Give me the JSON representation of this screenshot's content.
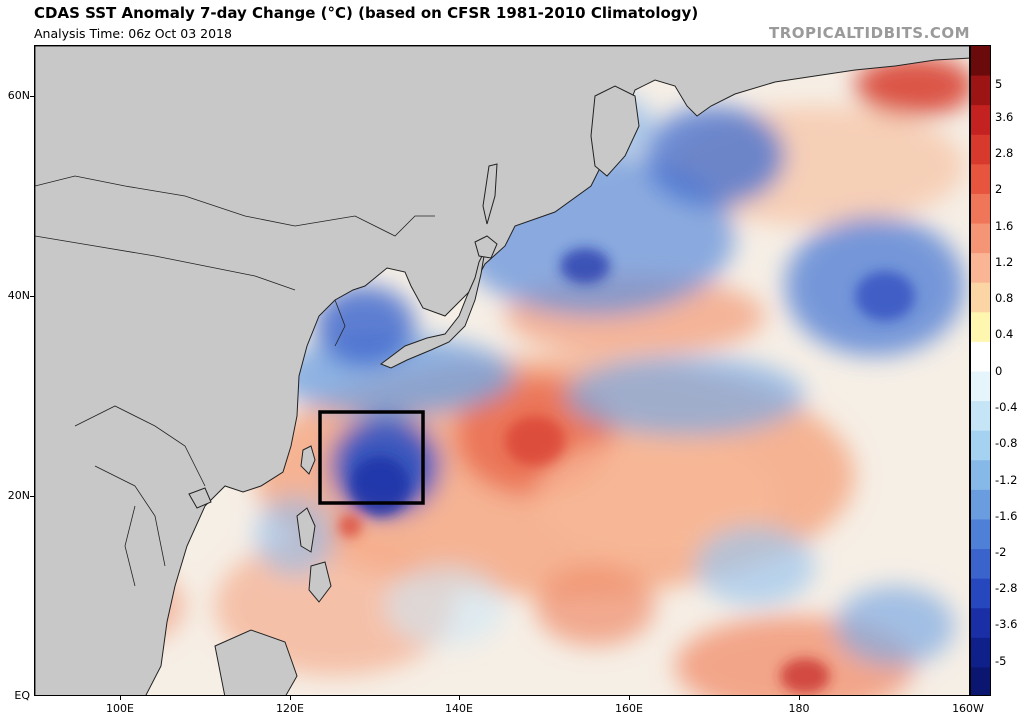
{
  "header": {
    "title": "CDAS SST Anomaly 7-day Change (°C) (based on CFSR 1981-2010 Climatology)",
    "analysis_time": "Analysis Time: 06z Oct 03 2018",
    "brand": "TROPICALTIDBITS.COM"
  },
  "map": {
    "lat_labels": [
      "60N",
      "40N",
      "20N",
      "EQ"
    ],
    "lon_labels": [
      "100E",
      "120E",
      "140E",
      "160E",
      "180",
      "160W"
    ],
    "land_color": "#c8c8c8",
    "box_color": "#000000",
    "highlight_box": {
      "lon_range": [
        "123E",
        "135E"
      ],
      "lat_range": [
        "19N",
        "28N"
      ]
    }
  },
  "colorbar": {
    "labels": [
      "5",
      "3.6",
      "2.8",
      "2",
      "1.6",
      "1.2",
      "0.8",
      "0.4",
      "0",
      "-0.4",
      "-0.8",
      "-1.2",
      "-1.6",
      "-2",
      "-2.8",
      "-3.6",
      "-5"
    ],
    "colors": [
      "#6a0a0a",
      "#9c1414",
      "#c42121",
      "#d73a2c",
      "#e8553f",
      "#ef7658",
      "#f49576",
      "#f9b594",
      "#fbd6a4",
      "#fff6b0",
      "#ffffff",
      "#e6f4fb",
      "#c5e5f6",
      "#a4d2f0",
      "#86b8e8",
      "#6a9de0",
      "#4f80d8",
      "#3a63cc",
      "#2747be",
      "#1a2fa6",
      "#10208a",
      "#0a1670"
    ]
  }
}
